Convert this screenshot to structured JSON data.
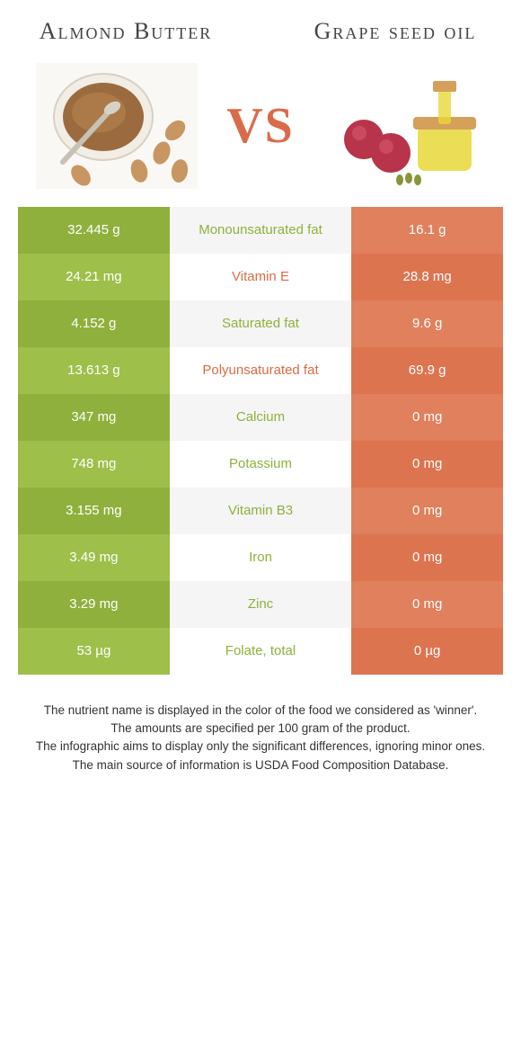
{
  "titles": {
    "left": "Almond Butter",
    "right": "Grape seed oil"
  },
  "vs_label": "VS",
  "colors": {
    "left_a": "#8fb03c",
    "left_b": "#9ebf4a",
    "right_a": "#e0805d",
    "right_b": "#dd7450",
    "mid_a": "#f5f5f5",
    "mid_b": "#ffffff",
    "mid_text_left": "#8fb03c",
    "mid_text_right": "#dc6b45"
  },
  "rows": [
    {
      "left": "32.445 g",
      "label": "Monounsaturated fat",
      "right": "16.1 g",
      "winner": "left"
    },
    {
      "left": "24.21 mg",
      "label": "Vitamin E",
      "right": "28.8 mg",
      "winner": "right"
    },
    {
      "left": "4.152 g",
      "label": "Saturated fat",
      "right": "9.6 g",
      "winner": "left"
    },
    {
      "left": "13.613 g",
      "label": "Polyunsaturated fat",
      "right": "69.9 g",
      "winner": "right"
    },
    {
      "left": "347 mg",
      "label": "Calcium",
      "right": "0 mg",
      "winner": "left"
    },
    {
      "left": "748 mg",
      "label": "Potassium",
      "right": "0 mg",
      "winner": "left"
    },
    {
      "left": "3.155 mg",
      "label": "Vitamin B3",
      "right": "0 mg",
      "winner": "left"
    },
    {
      "left": "3.49 mg",
      "label": "Iron",
      "right": "0 mg",
      "winner": "left"
    },
    {
      "left": "3.29 mg",
      "label": "Zinc",
      "right": "0 mg",
      "winner": "left"
    },
    {
      "left": "53 µg",
      "label": "Folate, total",
      "right": "0 µg",
      "winner": "left"
    }
  ],
  "footer": {
    "line1": "The nutrient name is displayed in the color of the food we considered as 'winner'.",
    "line2": "The amounts are specified per 100 gram of the product.",
    "line3": "The infographic aims to display only the significant differences, ignoring minor ones.",
    "line4": "The main source of information is USDA Food Composition Database."
  }
}
